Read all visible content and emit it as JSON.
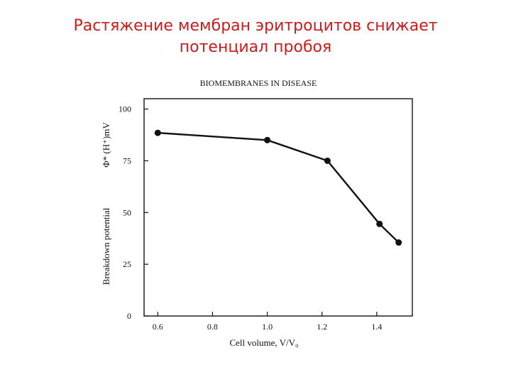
{
  "slide": {
    "title_line1": "Растяжение мембран эритроцитов снижает",
    "title_line2": "потенциал пробоя",
    "title_color": "#cc1b1b"
  },
  "chart_data": {
    "type": "line",
    "title": "BIOMEMBRANES IN DISEASE",
    "xlabel": "Cell volume, V/V₀",
    "ylabel": "Breakdown potential",
    "ylabel_symbol": "Φ* (H⁺)mV",
    "xlim": [
      0.55,
      1.53
    ],
    "ylim": [
      0,
      105
    ],
    "xticks": [
      "0.6",
      "0.8",
      "1.0",
      "1.2",
      "1.4"
    ],
    "yticks": [
      "0",
      "25",
      "50",
      "75",
      "100"
    ],
    "grid": false,
    "series": [
      {
        "x": [
          0.6,
          1.0,
          1.22,
          1.41,
          1.48
        ],
        "y": [
          88.5,
          85,
          75,
          44.5,
          35.5
        ]
      }
    ],
    "line_color": "#111111"
  }
}
